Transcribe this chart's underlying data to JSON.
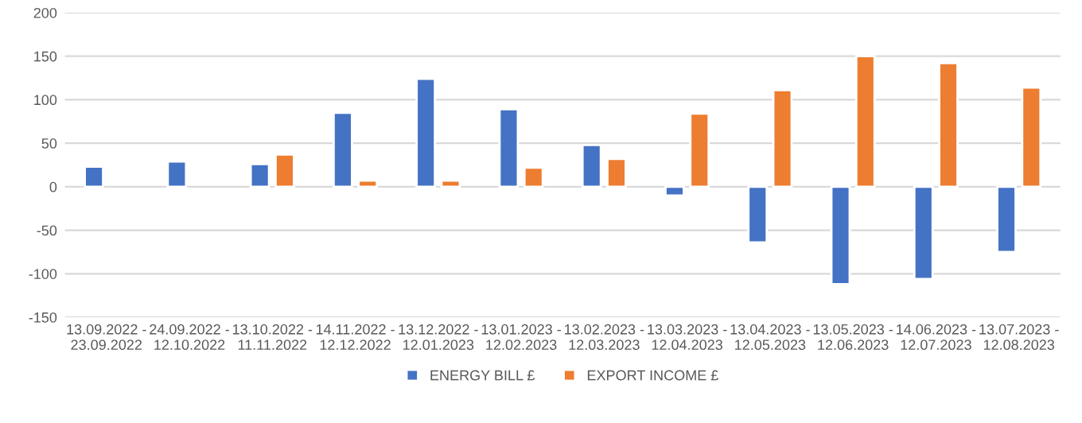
{
  "chart_data": {
    "type": "bar",
    "categories": [
      "13.09.2022 -\n23.09.2022",
      "24.09.2022 -\n12.10.2022",
      "13.10.2022 -\n11.11.2022",
      "14.11.2022 -\n12.12.2022",
      "13.12.2022 -\n12.01.2023",
      "13.01.2023 -\n12.02.2023",
      "13.02.2023 -\n12.03.2023",
      "13.03.2023 -\n12.04.2023",
      "13.04.2023 -\n12.05.2023",
      "13.05.2023 -\n12.06.2023",
      "14.06.2023 -\n12.07.2023",
      "13.07.2023 -\n12.08.2023"
    ],
    "series": [
      {
        "name": "ENERGY BILL £",
        "color": "#4472c4",
        "values": [
          23,
          29,
          26,
          85,
          124,
          89,
          48,
          -10,
          -64,
          -112,
          -106,
          -75
        ]
      },
      {
        "name": "EXPORT INCOME £",
        "color": "#ed7d31",
        "values": [
          null,
          null,
          37,
          7,
          7,
          22,
          32,
          84,
          111,
          150,
          142,
          114
        ]
      }
    ],
    "ylim": [
      -150,
      200
    ],
    "yticks": [
      -150,
      -100,
      -50,
      0,
      50,
      100,
      150,
      200
    ],
    "grid": "y",
    "legend": "bottom"
  }
}
